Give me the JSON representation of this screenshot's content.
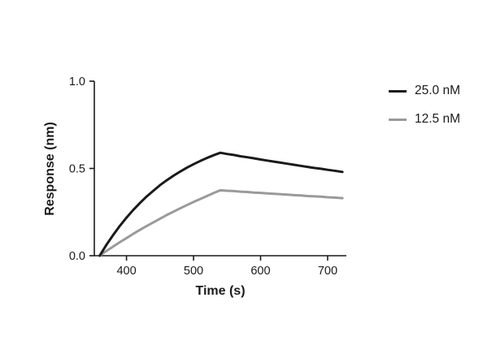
{
  "chart_data": {
    "type": "line",
    "title": "",
    "xlabel": "Time (s)",
    "ylabel": "Response (nm)",
    "xlim": [
      352,
      728
    ],
    "ylim": [
      0,
      1.0
    ],
    "xticks": [
      400,
      500,
      600,
      700
    ],
    "yticks": [
      0.0,
      0.5,
      1.0
    ],
    "grid": false,
    "legend_position": "right",
    "axis_color": "#1a1a1a",
    "series": [
      {
        "name": "25.0 nM",
        "color": "#1a1a1a",
        "points": [
          [
            360,
            0.0
          ],
          [
            370,
            0.062
          ],
          [
            380,
            0.118
          ],
          [
            390,
            0.17
          ],
          [
            400,
            0.218
          ],
          [
            410,
            0.262
          ],
          [
            420,
            0.302
          ],
          [
            430,
            0.339
          ],
          [
            440,
            0.372
          ],
          [
            450,
            0.404
          ],
          [
            460,
            0.432
          ],
          [
            470,
            0.458
          ],
          [
            480,
            0.482
          ],
          [
            490,
            0.504
          ],
          [
            500,
            0.524
          ],
          [
            510,
            0.543
          ],
          [
            520,
            0.56
          ],
          [
            530,
            0.576
          ],
          [
            540,
            0.59
          ],
          [
            550,
            0.583
          ],
          [
            560,
            0.577
          ],
          [
            570,
            0.57
          ],
          [
            580,
            0.564
          ],
          [
            590,
            0.558
          ],
          [
            600,
            0.551
          ],
          [
            610,
            0.545
          ],
          [
            620,
            0.539
          ],
          [
            630,
            0.533
          ],
          [
            640,
            0.527
          ],
          [
            650,
            0.521
          ],
          [
            660,
            0.515
          ],
          [
            670,
            0.509
          ],
          [
            680,
            0.503
          ],
          [
            690,
            0.498
          ],
          [
            700,
            0.492
          ],
          [
            710,
            0.487
          ],
          [
            722,
            0.48
          ]
        ]
      },
      {
        "name": "12.5 nM",
        "color": "#9a9a9a",
        "points": [
          [
            360,
            0.0
          ],
          [
            370,
            0.027
          ],
          [
            380,
            0.052
          ],
          [
            390,
            0.077
          ],
          [
            400,
            0.101
          ],
          [
            410,
            0.125
          ],
          [
            420,
            0.148
          ],
          [
            430,
            0.17
          ],
          [
            440,
            0.191
          ],
          [
            450,
            0.212
          ],
          [
            460,
            0.233
          ],
          [
            470,
            0.252
          ],
          [
            480,
            0.271
          ],
          [
            490,
            0.29
          ],
          [
            500,
            0.308
          ],
          [
            510,
            0.325
          ],
          [
            520,
            0.342
          ],
          [
            530,
            0.359
          ],
          [
            540,
            0.375
          ],
          [
            550,
            0.372
          ],
          [
            560,
            0.37
          ],
          [
            570,
            0.367
          ],
          [
            580,
            0.365
          ],
          [
            590,
            0.362
          ],
          [
            600,
            0.36
          ],
          [
            610,
            0.357
          ],
          [
            620,
            0.355
          ],
          [
            630,
            0.352
          ],
          [
            640,
            0.35
          ],
          [
            650,
            0.347
          ],
          [
            660,
            0.345
          ],
          [
            670,
            0.342
          ],
          [
            680,
            0.34
          ],
          [
            690,
            0.338
          ],
          [
            700,
            0.335
          ],
          [
            710,
            0.333
          ],
          [
            722,
            0.33
          ]
        ]
      }
    ]
  }
}
